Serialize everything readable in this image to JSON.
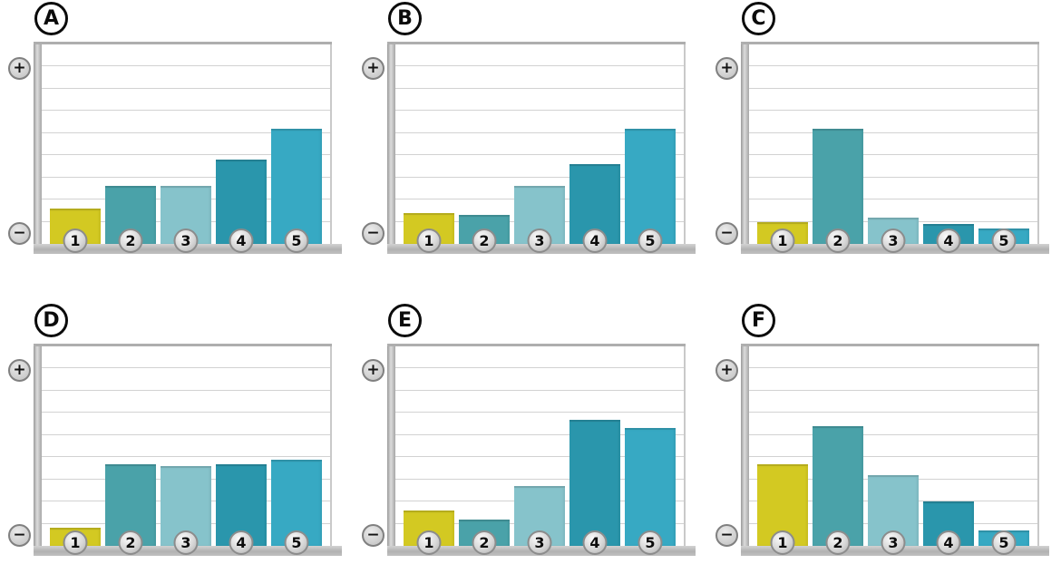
{
  "icons": {
    "plus": "+",
    "minus": "−"
  },
  "palette": {
    "bar_colors": [
      "#d3c922",
      "#4aa2a9",
      "#86c3cb",
      "#2a96ac",
      "#37a9c3"
    ],
    "axis_bar_color": "#b9b9b9",
    "gridline_color": "#d2d2d2",
    "letter_badge_border": "#0b0b0b",
    "number_badge_fill": "#d7d7d7"
  },
  "chart_data": [
    {
      "type": "bar",
      "panel_label": "A",
      "categories": [
        "1",
        "2",
        "3",
        "4",
        "5"
      ],
      "values": [
        1.6,
        2.6,
        2.6,
        3.8,
        5.2
      ],
      "ylim": [
        0,
        9
      ],
      "grid": true,
      "gridlines": 8,
      "title": "",
      "xlabel": "",
      "ylabel": "",
      "y_axis_endpoints": {
        "top": "+",
        "bottom": "−"
      }
    },
    {
      "type": "bar",
      "panel_label": "B",
      "categories": [
        "1",
        "2",
        "3",
        "4",
        "5"
      ],
      "values": [
        1.4,
        1.3,
        2.6,
        3.6,
        5.2
      ],
      "ylim": [
        0,
        9
      ],
      "grid": true,
      "gridlines": 8,
      "title": "",
      "xlabel": "",
      "ylabel": "",
      "y_axis_endpoints": {
        "top": "+",
        "bottom": "−"
      }
    },
    {
      "type": "bar",
      "panel_label": "C",
      "categories": [
        "1",
        "2",
        "3",
        "4",
        "5"
      ],
      "values": [
        1.0,
        5.2,
        1.2,
        0.9,
        0.7
      ],
      "ylim": [
        0,
        9
      ],
      "grid": true,
      "gridlines": 8,
      "title": "",
      "xlabel": "",
      "ylabel": "",
      "y_axis_endpoints": {
        "top": "+",
        "bottom": "−"
      }
    },
    {
      "type": "bar",
      "panel_label": "D",
      "categories": [
        "1",
        "2",
        "3",
        "4",
        "5"
      ],
      "values": [
        0.8,
        3.7,
        3.6,
        3.7,
        3.9
      ],
      "ylim": [
        0,
        9
      ],
      "grid": true,
      "gridlines": 8,
      "title": "",
      "xlabel": "",
      "ylabel": "",
      "y_axis_endpoints": {
        "top": "+",
        "bottom": "−"
      }
    },
    {
      "type": "bar",
      "panel_label": "E",
      "categories": [
        "1",
        "2",
        "3",
        "4",
        "5"
      ],
      "values": [
        1.6,
        1.2,
        2.7,
        5.7,
        5.3
      ],
      "ylim": [
        0,
        9
      ],
      "grid": true,
      "gridlines": 8,
      "title": "",
      "xlabel": "",
      "ylabel": "",
      "y_axis_endpoints": {
        "top": "+",
        "bottom": "−"
      }
    },
    {
      "type": "bar",
      "panel_label": "F",
      "categories": [
        "1",
        "2",
        "3",
        "4",
        "5"
      ],
      "values": [
        3.7,
        5.4,
        3.2,
        2.0,
        0.7
      ],
      "ylim": [
        0,
        9
      ],
      "grid": true,
      "gridlines": 8,
      "title": "",
      "xlabel": "",
      "ylabel": "",
      "y_axis_endpoints": {
        "top": "+",
        "bottom": "−"
      }
    }
  ]
}
